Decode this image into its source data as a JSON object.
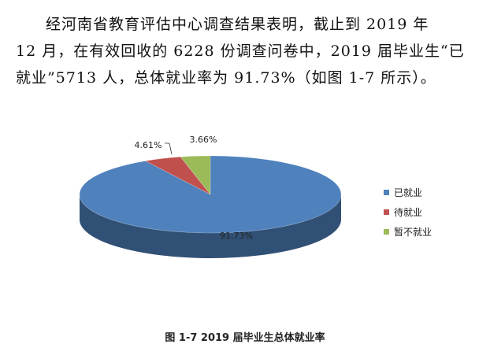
{
  "paragraph": {
    "line1": "经河南省教育评估中心调查结果表明，截止到 2019 年",
    "line2": "12 月，在有效回收的 6228 份调查问卷中，2019 届毕业生“已",
    "line3": "就业”5713 人，总体就业率为 91.73%（如图 1-7 所示）。"
  },
  "chart_data": {
    "type": "pie",
    "title": "",
    "categories": [
      "已就业",
      "待就业",
      "暂不就业"
    ],
    "values": [
      91.73,
      4.61,
      3.66
    ],
    "data_labels": [
      "91.73%",
      "4.61%",
      "3.66%"
    ],
    "colors": [
      "#4F81BD",
      "#C0504D",
      "#9BBB59"
    ],
    "style": "3d",
    "legend_position": "right"
  },
  "figure_caption": "图 1-7   2019 届毕业生总体就业率"
}
